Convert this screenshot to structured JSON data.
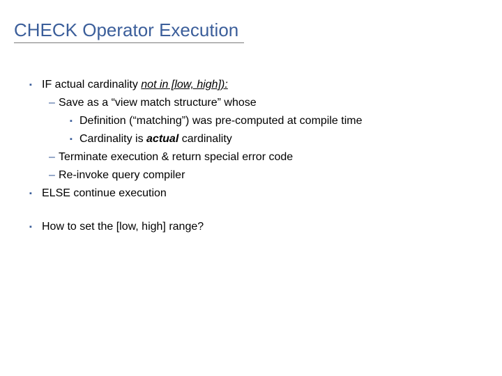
{
  "colors": {
    "title_color": "#3b5e9a",
    "title_underline": "#7a7a7a",
    "l1_bullet_color": "#3b5e9a",
    "l2_bullet_color": "#3b5e9a",
    "l3_bullet_color": "#3b5e9a",
    "body_text": "#000000",
    "background": "#ffffff"
  },
  "typography": {
    "title_fontsize": 26,
    "body_fontsize": 16,
    "font_family": "Arial"
  },
  "title": "CHECK Operator Execution",
  "lines": {
    "if_pre": "IF actual cardinality ",
    "if_notin": "not in [low, high]):",
    "save": "Save as a “view match structure” whose",
    "def": "Definition (“matching”) was pre-computed at compile time",
    "card_pre": "Cardinality is ",
    "card_actual": "actual",
    "card_post": " cardinality",
    "term": "Terminate execution & return special error code",
    "reinvoke": "Re-invoke query compiler",
    "else": "ELSE continue execution",
    "howto": "How to set the [low, high] range?"
  },
  "bullets": {
    "square": "▪",
    "dash": "–"
  }
}
